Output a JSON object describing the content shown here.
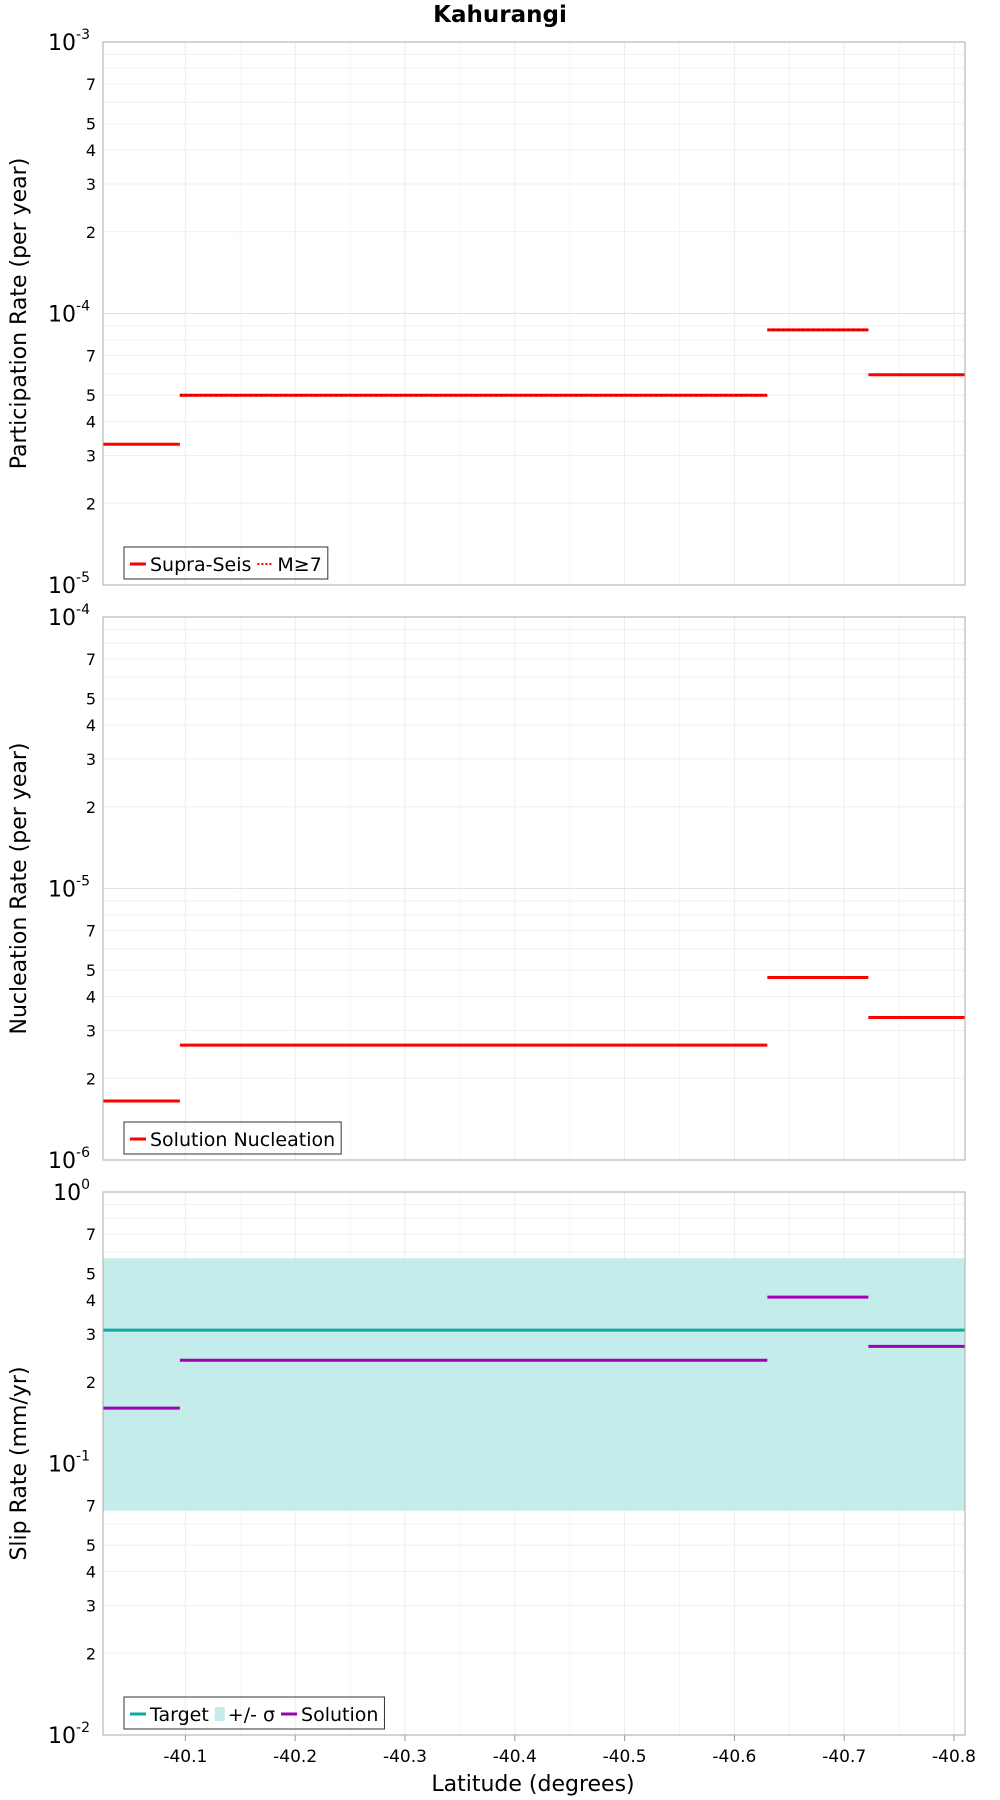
{
  "chart_data": [
    {
      "type": "line",
      "title": "Kahurangi",
      "ylabel": "Participation Rate (per year)",
      "xlabel": "",
      "yscale": "log",
      "ylim": [
        1e-05,
        0.001
      ],
      "xlim": [
        -40.025,
        -40.81
      ],
      "y_major_ticks": [
        {
          "base": "10",
          "exp": "-5",
          "value": 1e-05
        },
        {
          "base": "10",
          "exp": "-4",
          "value": 0.0001
        },
        {
          "base": "10",
          "exp": "-3",
          "value": 0.001
        }
      ],
      "y_minor_ticks": [
        2,
        3,
        4,
        5,
        7
      ],
      "legend_position": "bottom-left",
      "series": [
        {
          "name": "Supra-Seis",
          "color": "#ff0000",
          "style": "solid",
          "segments": [
            {
              "x": [
                -40.025,
                -40.095
              ],
              "y": 3.3e-05
            },
            {
              "x": [
                -40.095,
                -40.63
              ],
              "y": 5e-05
            },
            {
              "x": [
                -40.63,
                -40.722
              ],
              "y": 8.7e-05
            },
            {
              "x": [
                -40.722,
                -40.81
              ],
              "y": 5.95e-05
            }
          ]
        },
        {
          "name": "M≥7",
          "color": "#ff0000",
          "style": "dotted",
          "segments": [
            {
              "x": [
                -40.095,
                -40.63
              ],
              "y": 5e-05
            },
            {
              "x": [
                -40.63,
                -40.722
              ],
              "y": 8.7e-05
            }
          ]
        }
      ]
    },
    {
      "type": "line",
      "ylabel": "Nucleation Rate (per year)",
      "xlabel": "",
      "yscale": "log",
      "ylim": [
        1e-06,
        0.0001
      ],
      "xlim": [
        -40.025,
        -40.81
      ],
      "y_major_ticks": [
        {
          "base": "10",
          "exp": "-6",
          "value": 1e-06
        },
        {
          "base": "10",
          "exp": "-5",
          "value": 1e-05
        },
        {
          "base": "10",
          "exp": "-4",
          "value": 0.0001
        }
      ],
      "y_minor_ticks": [
        2,
        3,
        4,
        5,
        7
      ],
      "legend_position": "bottom-left",
      "series": [
        {
          "name": "Solution Nucleation",
          "color": "#ff0000",
          "style": "solid",
          "segments": [
            {
              "x": [
                -40.025,
                -40.095
              ],
              "y": 1.65e-06
            },
            {
              "x": [
                -40.095,
                -40.63
              ],
              "y": 2.65e-06
            },
            {
              "x": [
                -40.63,
                -40.722
              ],
              "y": 4.7e-06
            },
            {
              "x": [
                -40.722,
                -40.81
              ],
              "y": 3.35e-06
            }
          ]
        }
      ]
    },
    {
      "type": "line",
      "ylabel": "Slip Rate (mm/yr)",
      "xlabel": "Latitude (degrees)",
      "yscale": "log",
      "ylim": [
        0.01,
        1
      ],
      "xlim": [
        -40.025,
        -40.81
      ],
      "y_major_ticks": [
        {
          "base": "10",
          "exp": "-2",
          "value": 0.01
        },
        {
          "base": "10",
          "exp": "-1",
          "value": 0.1
        },
        {
          "base": "10",
          "exp": "0",
          "value": 1
        }
      ],
      "y_minor_ticks": [
        2,
        3,
        4,
        5,
        7
      ],
      "x_ticks": [
        "-40.1",
        "-40.2",
        "-40.3",
        "-40.4",
        "-40.5",
        "-40.6",
        "-40.7",
        "-40.8"
      ],
      "legend_position": "bottom-left",
      "band": {
        "name": "+/- σ",
        "color": "#c4ecea",
        "low": 0.067,
        "high": 0.57
      },
      "series": [
        {
          "name": "Target",
          "color": "#12aaa0",
          "style": "solid",
          "segments": [
            {
              "x": [
                -40.025,
                -40.81
              ],
              "y": 0.31
            }
          ]
        },
        {
          "name": "Solution",
          "color": "#a000b8",
          "style": "solid",
          "segments": [
            {
              "x": [
                -40.025,
                -40.095
              ],
              "y": 0.16
            },
            {
              "x": [
                -40.095,
                -40.63
              ],
              "y": 0.24
            },
            {
              "x": [
                -40.63,
                -40.722
              ],
              "y": 0.41
            },
            {
              "x": [
                -40.722,
                -40.81
              ],
              "y": 0.27
            }
          ]
        }
      ]
    }
  ]
}
